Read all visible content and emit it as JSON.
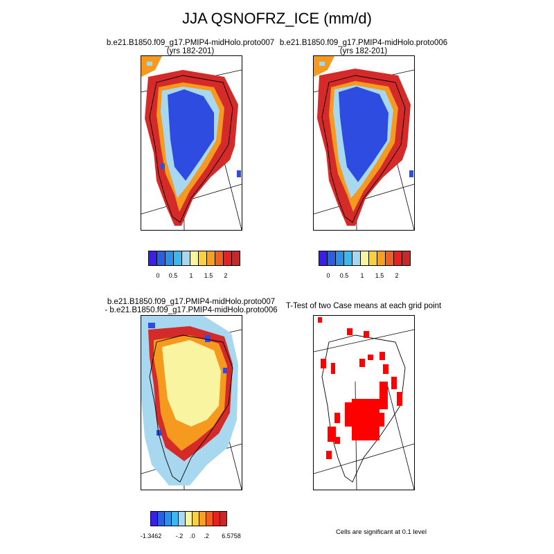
{
  "figure": {
    "title": "JJA QSNOFRZ_ICE (mm/d)"
  },
  "panels": {
    "top_left": {
      "title_line1": "b.e21.B1850.f09_g17.PMIP4-midHolo.proto007",
      "title_line2": "(yrs 182-201)"
    },
    "top_right": {
      "title_line1": "b.e21.B1850.f09_g17.PMIP4-midHolo.proto006",
      "title_line2": "(yrs 182-201)"
    },
    "bottom_left": {
      "title_line1": "b.e21.B1850.f09_g17.PMIP4-midHolo.proto007",
      "title_line2": "- b.e21.B1850.f09_g17.PMIP4-midHolo.proto006"
    },
    "bottom_right": {
      "title_line1": "T-Test of two Case means at each grid point",
      "note": "Cells are significant at 0.1 level"
    }
  },
  "colorbars": {
    "top_left": {
      "colors": [
        "#3a1fe8",
        "#2a5fe0",
        "#2e8fe8",
        "#3ab8f0",
        "#a8d8f0",
        "#f8f4a0",
        "#f8d040",
        "#f8a020",
        "#f06020",
        "#e82020",
        "#c82828"
      ],
      "labels": [
        "0",
        "0.5",
        "1",
        "1.5",
        "2"
      ]
    },
    "top_right": {
      "colors": [
        "#3a1fe8",
        "#2a5fe0",
        "#2e8fe8",
        "#3ab8f0",
        "#a8d8f0",
        "#f8f4a0",
        "#f8d040",
        "#f8a020",
        "#f06020",
        "#e82020",
        "#c82828"
      ],
      "labels": [
        "0",
        "0.5",
        "1",
        "1.5",
        "2"
      ]
    },
    "bottom_left": {
      "colors": [
        "#3a1fe8",
        "#2a5fe0",
        "#2e8fe8",
        "#3ab8f0",
        "#a8d8f0",
        "#f8f4a0",
        "#f8d040",
        "#f8a020",
        "#f06020",
        "#e82020",
        "#c82828"
      ],
      "labels": [
        "-1.3462",
        "-.2",
        ".0",
        ".2",
        "6.5758"
      ]
    }
  },
  "map_colors": {
    "high": "#d42a2a",
    "mid_orange": "#f59a1e",
    "yellow": "#f8f4a0",
    "light_blue": "#a8d8f0",
    "blue": "#2e4de0",
    "sig_red": "#ff0000"
  }
}
